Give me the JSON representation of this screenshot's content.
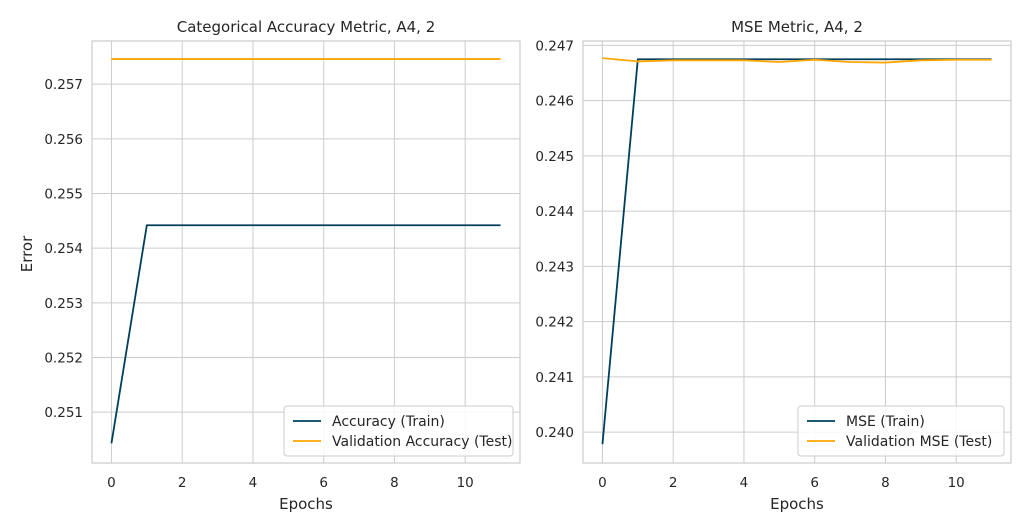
{
  "figure": {
    "background": "#ffffff",
    "grid_color": "#cccccc",
    "spine_color": "#cccccc"
  },
  "chart_data": [
    {
      "type": "line",
      "title": "Categorical Accuracy Metric, A4, 2",
      "xlabel": "Epochs",
      "ylabel": "Error",
      "grid": true,
      "legend_position": "lower right",
      "xlim": [
        -0.55,
        11.55
      ],
      "ylim": [
        0.25007,
        0.25779
      ],
      "xticks": [
        0,
        2,
        4,
        6,
        8,
        10
      ],
      "yticks": [
        0.251,
        0.252,
        0.253,
        0.254,
        0.255,
        0.256,
        0.257
      ],
      "xtick_labels": [
        "0",
        "2",
        "4",
        "6",
        "8",
        "10"
      ],
      "ytick_labels": [
        "0.251",
        "0.252",
        "0.253",
        "0.254",
        "0.255",
        "0.256",
        "0.257"
      ],
      "x": [
        0,
        1,
        2,
        3,
        4,
        5,
        6,
        7,
        8,
        9,
        10,
        11
      ],
      "series": [
        {
          "name": "Accuracy (Train)",
          "color": "#003f5c",
          "values": [
            0.25043,
            0.25442,
            0.25442,
            0.25442,
            0.25442,
            0.25442,
            0.25442,
            0.25442,
            0.25442,
            0.25442,
            0.25442,
            0.25442
          ]
        },
        {
          "name": "Validation Accuracy (Test)",
          "color": "#ffa600",
          "values": [
            0.25746,
            0.25746,
            0.25746,
            0.25746,
            0.25746,
            0.25746,
            0.25746,
            0.25746,
            0.25746,
            0.25746,
            0.25746,
            0.25746
          ]
        }
      ]
    },
    {
      "type": "line",
      "title": "MSE Metric, A4, 2",
      "xlabel": "Epochs",
      "ylabel": "",
      "grid": true,
      "legend_position": "lower right",
      "xlim": [
        -0.55,
        11.55
      ],
      "ylim": [
        0.23944,
        0.24708
      ],
      "xticks": [
        0,
        2,
        4,
        6,
        8,
        10
      ],
      "yticks": [
        0.24,
        0.241,
        0.242,
        0.243,
        0.244,
        0.245,
        0.246,
        0.247
      ],
      "xtick_labels": [
        "0",
        "2",
        "4",
        "6",
        "8",
        "10"
      ],
      "ytick_labels": [
        "0.240",
        "0.241",
        "0.242",
        "0.243",
        "0.244",
        "0.245",
        "0.246",
        "0.247"
      ],
      "x": [
        0,
        1,
        2,
        3,
        4,
        5,
        6,
        7,
        8,
        9,
        10,
        11
      ],
      "series": [
        {
          "name": "MSE (Train)",
          "color": "#003f5c",
          "values": [
            0.23978,
            0.24675,
            0.24675,
            0.24675,
            0.24675,
            0.24675,
            0.24675,
            0.24675,
            0.24675,
            0.24675,
            0.24675,
            0.24675
          ]
        },
        {
          "name": "Validation MSE (Test)",
          "color": "#ffa600",
          "values": [
            0.24677,
            0.24671,
            0.24673,
            0.24673,
            0.24673,
            0.2467,
            0.24674,
            0.2467,
            0.24669,
            0.24673,
            0.24674,
            0.24674
          ]
        }
      ]
    }
  ]
}
